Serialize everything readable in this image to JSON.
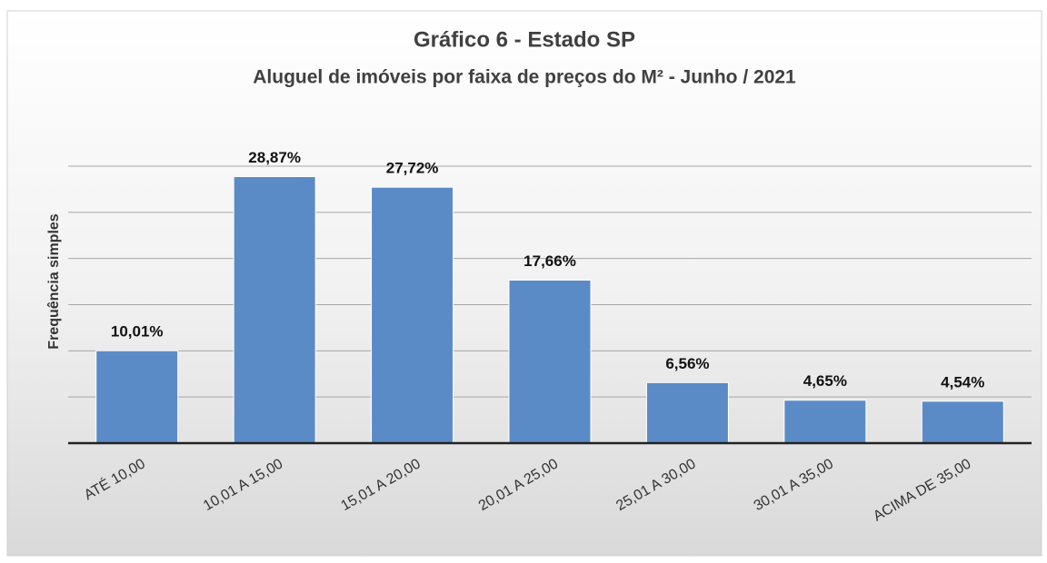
{
  "chart_data": {
    "type": "bar",
    "title": "Gráfico 6 - Estado SP",
    "subtitle": "Aluguel de imóveis por faixa de preços do M² - Junho / 2021",
    "y_label": "Frequência simples",
    "categories": [
      "ATÉ 10,00",
      "10,01 A 15,00",
      "15,01 A 20,00",
      "20,01 A 25,00",
      "25,01 A 30,00",
      "30,01 A 35,00",
      "ACIMA DE 35,00"
    ],
    "values": [
      10.01,
      28.87,
      27.72,
      17.66,
      6.56,
      4.65,
      4.54
    ],
    "value_labels": [
      "10,01%",
      "28,87%",
      "27,72%",
      "17,66%",
      "6,56%",
      "4,65%",
      "4,54%"
    ],
    "color": "#5b8bc6",
    "ylim": [
      0,
      30
    ],
    "yticks": [
      0,
      5,
      10,
      15,
      20,
      25,
      30
    ],
    "grid": true
  }
}
